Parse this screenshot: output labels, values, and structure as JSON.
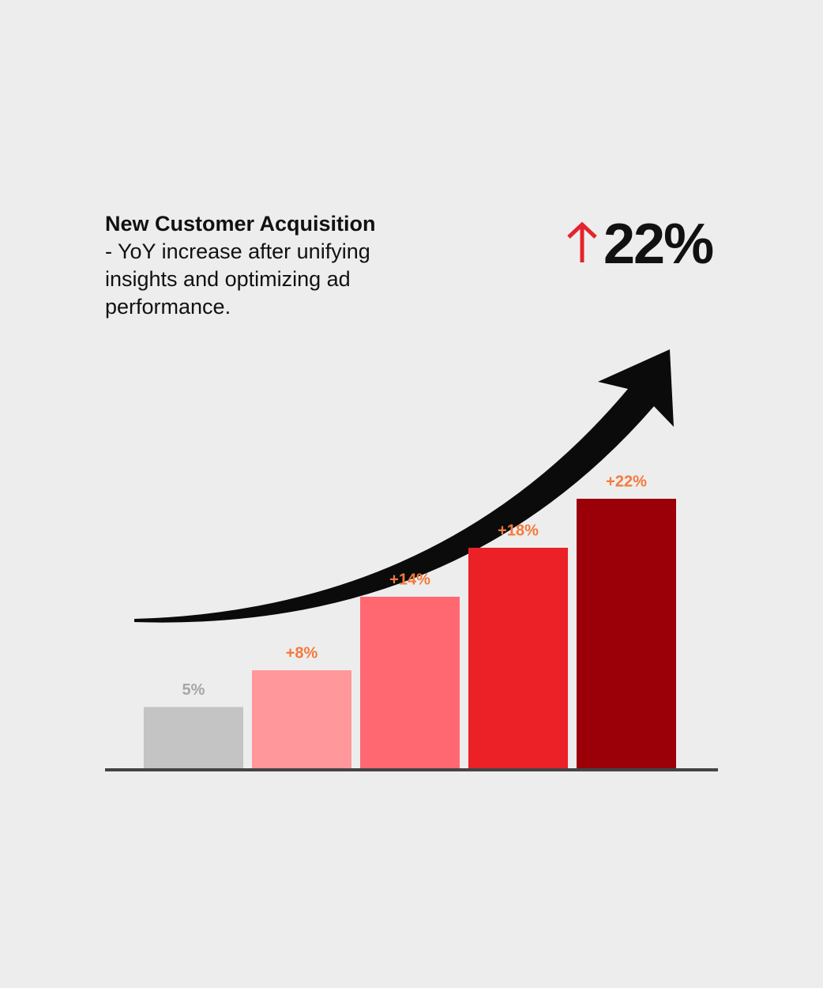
{
  "chart_data": {
    "type": "bar",
    "title_bold": "New Customer Acquisition",
    "title_rest": " - YoY increase after unifying insights and optimizing ad performance.",
    "highlight": "22%",
    "values": [
      5,
      8,
      14,
      18,
      22
    ],
    "value_labels": [
      "5%",
      "+8%",
      "+14%",
      "+18%",
      "+22%"
    ],
    "colors": [
      "#c4c4c4",
      "#ff979b",
      "#ff6870",
      "#ec2027",
      "#9b0009"
    ],
    "label_colors": [
      "#a6a6a6",
      "#f47a3c",
      "#f47a3c",
      "#f47a3c",
      "#f47a3c"
    ]
  }
}
